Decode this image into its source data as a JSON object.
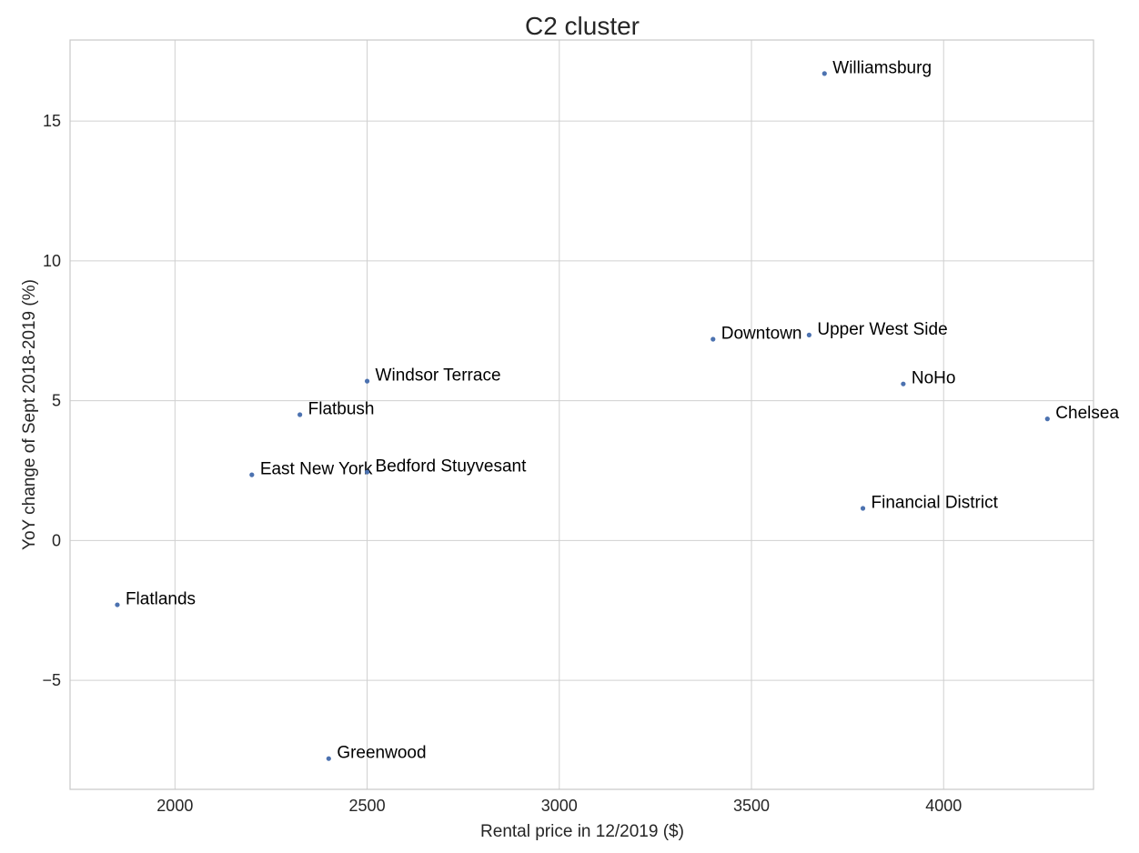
{
  "chart_data": {
    "type": "scatter",
    "title": "C2 cluster",
    "xlabel": "Rental price in 12/2019 ($)",
    "ylabel": "YoY change of Sept 2018-2019 (%)",
    "xlim": [
      1727,
      4390
    ],
    "ylim": [
      -8.9,
      17.9
    ],
    "xticks": [
      2000,
      2500,
      3000,
      3500,
      4000
    ],
    "xtick_labels": [
      "2000",
      "2500",
      "3000",
      "3500",
      "4000"
    ],
    "yticks": [
      -5,
      0,
      5,
      10,
      15
    ],
    "ytick_labels": [
      "−5",
      "0",
      "5",
      "10",
      "15"
    ],
    "grid": true,
    "point_color": "#4c72b0",
    "points": [
      {
        "label": "Williamsburg",
        "x": 3690,
        "y": 16.7
      },
      {
        "label": "Downtown",
        "x": 3400,
        "y": 7.2
      },
      {
        "label": "Upper West Side",
        "x": 3650,
        "y": 7.35
      },
      {
        "label": "NoHo",
        "x": 3895,
        "y": 5.6
      },
      {
        "label": "Windsor Terrace",
        "x": 2500,
        "y": 5.7
      },
      {
        "label": "Chelsea",
        "x": 4270,
        "y": 4.35
      },
      {
        "label": "Flatbush",
        "x": 2325,
        "y": 4.5
      },
      {
        "label": "East New York",
        "x": 2200,
        "y": 2.35
      },
      {
        "label": "Bedford Stuyvesant",
        "x": 2500,
        "y": 2.45
      },
      {
        "label": "Financial District",
        "x": 3790,
        "y": 1.15
      },
      {
        "label": "Flatlands",
        "x": 1850,
        "y": -2.3
      },
      {
        "label": "Greenwood",
        "x": 2400,
        "y": -7.8
      }
    ]
  }
}
